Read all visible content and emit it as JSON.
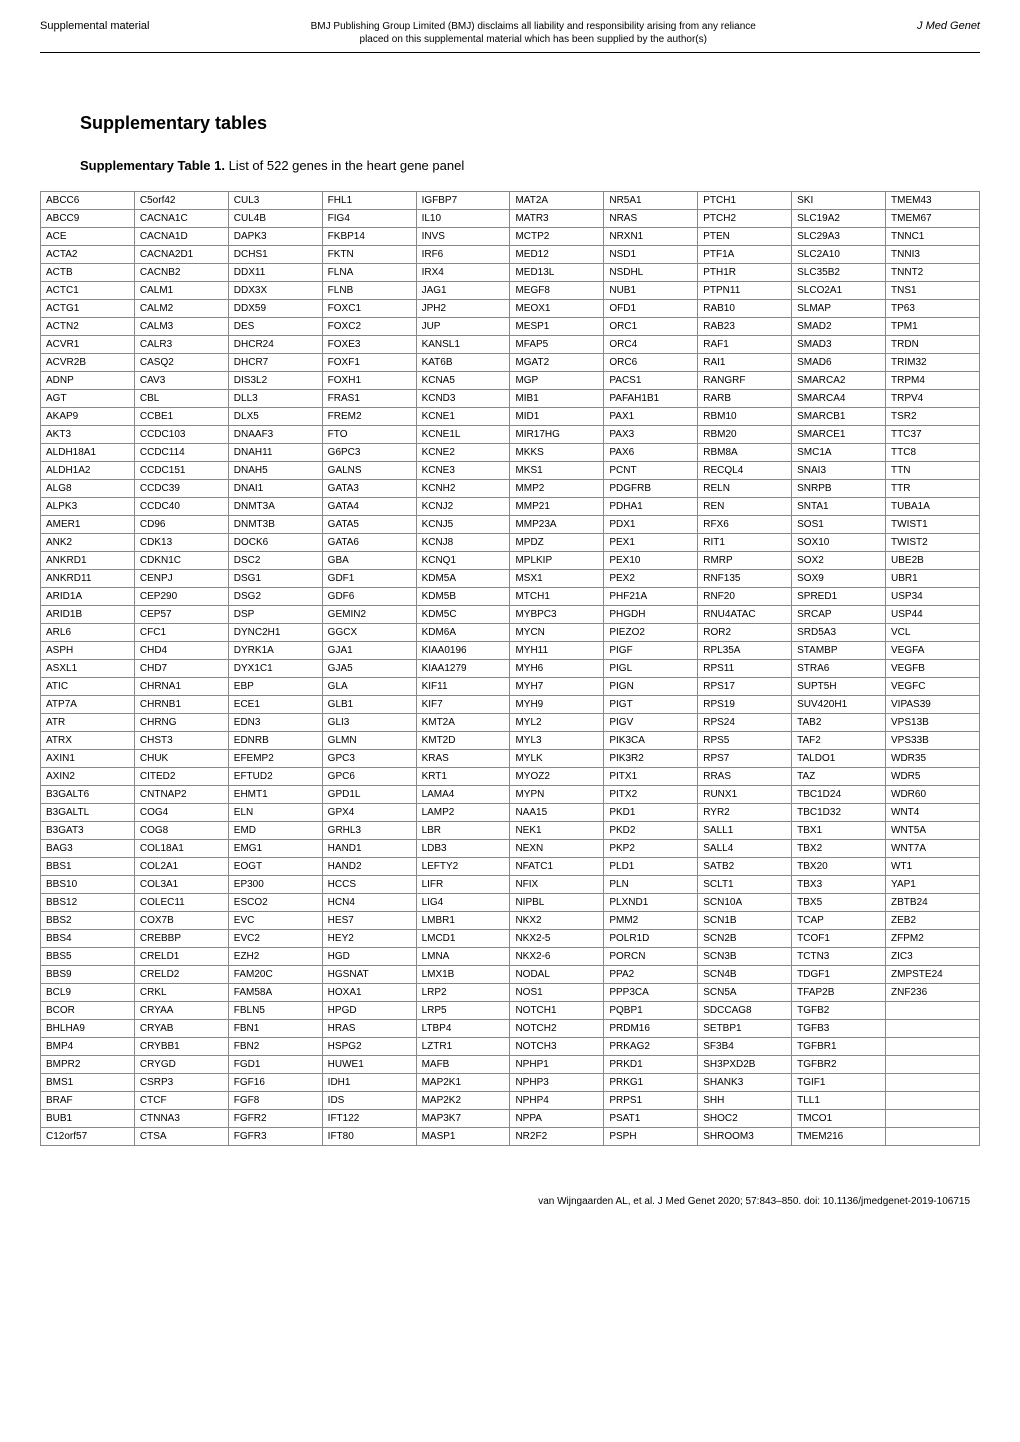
{
  "header": {
    "left": "Supplemental material",
    "center_line1": "BMJ Publishing Group Limited (BMJ) disclaims all liability and responsibility arising from any reliance",
    "center_line2": "placed on this supplemental material which has been supplied by the author(s)",
    "right": "J Med Genet"
  },
  "title": "Supplementary tables",
  "subtitle_bold": "Supplementary Table 1.",
  "subtitle_rest": " List of 522 genes in the heart gene panel",
  "footer": "van Wijngaarden AL, et al. J Med Genet 2020; 57:843–850. doi: 10.1136/jmedgenet-2019-106715",
  "table": {
    "columns": 10,
    "rows": [
      [
        "ABCC6",
        "C5orf42",
        "CUL3",
        "FHL1",
        "IGFBP7",
        "MAT2A",
        "NR5A1",
        "PTCH1",
        "SKI",
        "TMEM43"
      ],
      [
        "ABCC9",
        "CACNA1C",
        "CUL4B",
        "FIG4",
        "IL10",
        "MATR3",
        "NRAS",
        "PTCH2",
        "SLC19A2",
        "TMEM67"
      ],
      [
        "ACE",
        "CACNA1D",
        "DAPK3",
        "FKBP14",
        "INVS",
        "MCTP2",
        "NRXN1",
        "PTEN",
        "SLC29A3",
        "TNNC1"
      ],
      [
        "ACTA2",
        "CACNA2D1",
        "DCHS1",
        "FKTN",
        "IRF6",
        "MED12",
        "NSD1",
        "PTF1A",
        "SLC2A10",
        "TNNI3"
      ],
      [
        "ACTB",
        "CACNB2",
        "DDX11",
        "FLNA",
        "IRX4",
        "MED13L",
        "NSDHL",
        "PTH1R",
        "SLC35B2",
        "TNNT2"
      ],
      [
        "ACTC1",
        "CALM1",
        "DDX3X",
        "FLNB",
        "JAG1",
        "MEGF8",
        "NUB1",
        "PTPN11",
        "SLCO2A1",
        "TNS1"
      ],
      [
        "ACTG1",
        "CALM2",
        "DDX59",
        "FOXC1",
        "JPH2",
        "MEOX1",
        "OFD1",
        "RAB10",
        "SLMAP",
        "TP63"
      ],
      [
        "ACTN2",
        "CALM3",
        "DES",
        "FOXC2",
        "JUP",
        "MESP1",
        "ORC1",
        "RAB23",
        "SMAD2",
        "TPM1"
      ],
      [
        "ACVR1",
        "CALR3",
        "DHCR24",
        "FOXE3",
        "KANSL1",
        "MFAP5",
        "ORC4",
        "RAF1",
        "SMAD3",
        "TRDN"
      ],
      [
        "ACVR2B",
        "CASQ2",
        "DHCR7",
        "FOXF1",
        "KAT6B",
        "MGAT2",
        "ORC6",
        "RAI1",
        "SMAD6",
        "TRIM32"
      ],
      [
        "ADNP",
        "CAV3",
        "DIS3L2",
        "FOXH1",
        "KCNA5",
        "MGP",
        "PACS1",
        "RANGRF",
        "SMARCA2",
        "TRPM4"
      ],
      [
        "AGT",
        "CBL",
        "DLL3",
        "FRAS1",
        "KCND3",
        "MIB1",
        "PAFAH1B1",
        "RARB",
        "SMARCA4",
        "TRPV4"
      ],
      [
        "AKAP9",
        "CCBE1",
        "DLX5",
        "FREM2",
        "KCNE1",
        "MID1",
        "PAX1",
        "RBM10",
        "SMARCB1",
        "TSR2"
      ],
      [
        "AKT3",
        "CCDC103",
        "DNAAF3",
        "FTO",
        "KCNE1L",
        "MIR17HG",
        "PAX3",
        "RBM20",
        "SMARCE1",
        "TTC37"
      ],
      [
        "ALDH18A1",
        "CCDC114",
        "DNAH11",
        "G6PC3",
        "KCNE2",
        "MKKS",
        "PAX6",
        "RBM8A",
        "SMC1A",
        "TTC8"
      ],
      [
        "ALDH1A2",
        "CCDC151",
        "DNAH5",
        "GALNS",
        "KCNE3",
        "MKS1",
        "PCNT",
        "RECQL4",
        "SNAI3",
        "TTN"
      ],
      [
        "ALG8",
        "CCDC39",
        "DNAI1",
        "GATA3",
        "KCNH2",
        "MMP2",
        "PDGFRB",
        "RELN",
        "SNRPB",
        "TTR"
      ],
      [
        "ALPK3",
        "CCDC40",
        "DNMT3A",
        "GATA4",
        "KCNJ2",
        "MMP21",
        "PDHA1",
        "REN",
        "SNTA1",
        "TUBA1A"
      ],
      [
        "AMER1",
        "CD96",
        "DNMT3B",
        "GATA5",
        "KCNJ5",
        "MMP23A",
        "PDX1",
        "RFX6",
        "SOS1",
        "TWIST1"
      ],
      [
        "ANK2",
        "CDK13",
        "DOCK6",
        "GATA6",
        "KCNJ8",
        "MPDZ",
        "PEX1",
        "RIT1",
        "SOX10",
        "TWIST2"
      ],
      [
        "ANKRD1",
        "CDKN1C",
        "DSC2",
        "GBA",
        "KCNQ1",
        "MPLKIP",
        "PEX10",
        "RMRP",
        "SOX2",
        "UBE2B"
      ],
      [
        "ANKRD11",
        "CENPJ",
        "DSG1",
        "GDF1",
        "KDM5A",
        "MSX1",
        "PEX2",
        "RNF135",
        "SOX9",
        "UBR1"
      ],
      [
        "ARID1A",
        "CEP290",
        "DSG2",
        "GDF6",
        "KDM5B",
        "MTCH1",
        "PHF21A",
        "RNF20",
        "SPRED1",
        "USP34"
      ],
      [
        "ARID1B",
        "CEP57",
        "DSP",
        "GEMIN2",
        "KDM5C",
        "MYBPC3",
        "PHGDH",
        "RNU4ATAC",
        "SRCAP",
        "USP44"
      ],
      [
        "ARL6",
        "CFC1",
        "DYNC2H1",
        "GGCX",
        "KDM6A",
        "MYCN",
        "PIEZO2",
        "ROR2",
        "SRD5A3",
        "VCL"
      ],
      [
        "ASPH",
        "CHD4",
        "DYRK1A",
        "GJA1",
        "KIAA0196",
        "MYH11",
        "PIGF",
        "RPL35A",
        "STAMBP",
        "VEGFA"
      ],
      [
        "ASXL1",
        "CHD7",
        "DYX1C1",
        "GJA5",
        "KIAA1279",
        "MYH6",
        "PIGL",
        "RPS11",
        "STRA6",
        "VEGFB"
      ],
      [
        "ATIC",
        "CHRNA1",
        "EBP",
        "GLA",
        "KIF11",
        "MYH7",
        "PIGN",
        "RPS17",
        "SUPT5H",
        "VEGFC"
      ],
      [
        "ATP7A",
        "CHRNB1",
        "ECE1",
        "GLB1",
        "KIF7",
        "MYH9",
        "PIGT",
        "RPS19",
        "SUV420H1",
        "VIPAS39"
      ],
      [
        "ATR",
        "CHRNG",
        "EDN3",
        "GLI3",
        "KMT2A",
        "MYL2",
        "PIGV",
        "RPS24",
        "TAB2",
        "VPS13B"
      ],
      [
        "ATRX",
        "CHST3",
        "EDNRB",
        "GLMN",
        "KMT2D",
        "MYL3",
        "PIK3CA",
        "RPS5",
        "TAF2",
        "VPS33B"
      ],
      [
        "AXIN1",
        "CHUK",
        "EFEMP2",
        "GPC3",
        "KRAS",
        "MYLK",
        "PIK3R2",
        "RPS7",
        "TALDO1",
        "WDR35"
      ],
      [
        "AXIN2",
        "CITED2",
        "EFTUD2",
        "GPC6",
        "KRT1",
        "MYOZ2",
        "PITX1",
        "RRAS",
        "TAZ",
        "WDR5"
      ],
      [
        "B3GALT6",
        "CNTNAP2",
        "EHMT1",
        "GPD1L",
        "LAMA4",
        "MYPN",
        "PITX2",
        "RUNX1",
        "TBC1D24",
        "WDR60"
      ],
      [
        "B3GALTL",
        "COG4",
        "ELN",
        "GPX4",
        "LAMP2",
        "NAA15",
        "PKD1",
        "RYR2",
        "TBC1D32",
        "WNT4"
      ],
      [
        "B3GAT3",
        "COG8",
        "EMD",
        "GRHL3",
        "LBR",
        "NEK1",
        "PKD2",
        "SALL1",
        "TBX1",
        "WNT5A"
      ],
      [
        "BAG3",
        "COL18A1",
        "EMG1",
        "HAND1",
        "LDB3",
        "NEXN",
        "PKP2",
        "SALL4",
        "TBX2",
        "WNT7A"
      ],
      [
        "BBS1",
        "COL2A1",
        "EOGT",
        "HAND2",
        "LEFTY2",
        "NFATC1",
        "PLD1",
        "SATB2",
        "TBX20",
        "WT1"
      ],
      [
        "BBS10",
        "COL3A1",
        "EP300",
        "HCCS",
        "LIFR",
        "NFIX",
        "PLN",
        "SCLT1",
        "TBX3",
        "YAP1"
      ],
      [
        "BBS12",
        "COLEC11",
        "ESCO2",
        "HCN4",
        "LIG4",
        "NIPBL",
        "PLXND1",
        "SCN10A",
        "TBX5",
        "ZBTB24"
      ],
      [
        "BBS2",
        "COX7B",
        "EVC",
        "HES7",
        "LMBR1",
        "NKX2",
        "PMM2",
        "SCN1B",
        "TCAP",
        "ZEB2"
      ],
      [
        "BBS4",
        "CREBBP",
        "EVC2",
        "HEY2",
        "LMCD1",
        "NKX2-5",
        "POLR1D",
        "SCN2B",
        "TCOF1",
        "ZFPM2"
      ],
      [
        "BBS5",
        "CRELD1",
        "EZH2",
        "HGD",
        "LMNA",
        "NKX2-6",
        "PORCN",
        "SCN3B",
        "TCTN3",
        "ZIC3"
      ],
      [
        "BBS9",
        "CRELD2",
        "FAM20C",
        "HGSNAT",
        "LMX1B",
        "NODAL",
        "PPA2",
        "SCN4B",
        "TDGF1",
        "ZMPSTE24"
      ],
      [
        "BCL9",
        "CRKL",
        "FAM58A",
        "HOXA1",
        "LRP2",
        "NOS1",
        "PPP3CA",
        "SCN5A",
        "TFAP2B",
        "ZNF236"
      ],
      [
        "BCOR",
        "CRYAA",
        "FBLN5",
        "HPGD",
        "LRP5",
        "NOTCH1",
        "PQBP1",
        "SDCCAG8",
        "TGFB2",
        ""
      ],
      [
        "BHLHA9",
        "CRYAB",
        "FBN1",
        "HRAS",
        "LTBP4",
        "NOTCH2",
        "PRDM16",
        "SETBP1",
        "TGFB3",
        ""
      ],
      [
        "BMP4",
        "CRYBB1",
        "FBN2",
        "HSPG2",
        "LZTR1",
        "NOTCH3",
        "PRKAG2",
        "SF3B4",
        "TGFBR1",
        ""
      ],
      [
        "BMPR2",
        "CRYGD",
        "FGD1",
        "HUWE1",
        "MAFB",
        "NPHP1",
        "PRKD1",
        "SH3PXD2B",
        "TGFBR2",
        ""
      ],
      [
        "BMS1",
        "CSRP3",
        "FGF16",
        "IDH1",
        "MAP2K1",
        "NPHP3",
        "PRKG1",
        "SHANK3",
        "TGIF1",
        ""
      ],
      [
        "BRAF",
        "CTCF",
        "FGF8",
        "IDS",
        "MAP2K2",
        "NPHP4",
        "PRPS1",
        "SHH",
        "TLL1",
        ""
      ],
      [
        "BUB1",
        "CTNNA3",
        "FGFR2",
        "IFT122",
        "MAP3K7",
        "NPPA",
        "PSAT1",
        "SHOC2",
        "TMCO1",
        ""
      ],
      [
        "C12orf57",
        "CTSA",
        "FGFR3",
        "IFT80",
        "MASP1",
        "NR2F2",
        "PSPH",
        "SHROOM3",
        "TMEM216",
        ""
      ]
    ]
  }
}
